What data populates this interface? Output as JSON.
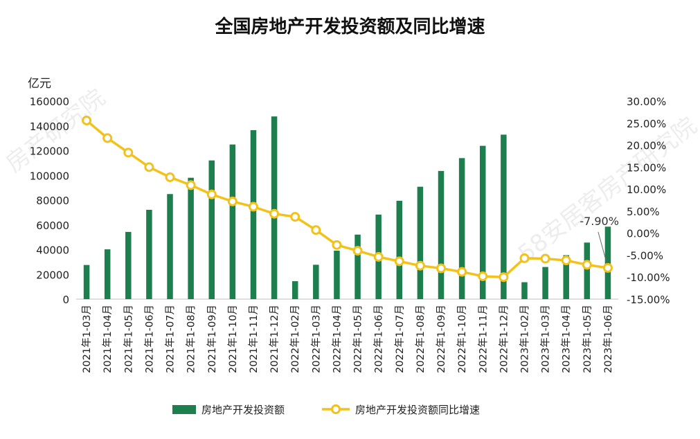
{
  "chart_data": {
    "type": "bar+line",
    "title": "全国房地产开发投资额及同比增速",
    "y_unit": "亿元",
    "categories": [
      "2021年1-03月",
      "2021年1-04月",
      "2021年1-05月",
      "2021年1-06月",
      "2021年1-07月",
      "2021年1-08月",
      "2021年1-09月",
      "2021年1-10月",
      "2021年1-11月",
      "2021年1-12月",
      "2022年1-02月",
      "2022年1-03月",
      "2022年1-04月",
      "2022年1-05月",
      "2022年1-06月",
      "2022年1-07月",
      "2022年1-08月",
      "2022年1-09月",
      "2022年1-10月",
      "2022年1-11月",
      "2022年1-12月",
      "2023年1-02月",
      "2023年1-03月",
      "2023年1-04月",
      "2023年1-05月",
      "2023年1-06月"
    ],
    "series": [
      {
        "name": "房地产开发投资额",
        "type": "bar",
        "axis": "left",
        "color": "#1e7f4e",
        "values": [
          27576,
          40240,
          54318,
          72179,
          84895,
          98060,
          112060,
          124934,
          136538,
          147602,
          14499,
          27765,
          39154,
          52134,
          68314,
          79462,
          90809,
          103559,
          113945,
          123863,
          132895,
          13669,
          25974,
          35514,
          45701,
          58550
        ]
      },
      {
        "name": "房地产开发投资额同比增速",
        "type": "line",
        "axis": "right",
        "color": "#f2c21b",
        "values": [
          25.6,
          21.6,
          18.3,
          15.0,
          12.7,
          10.9,
          8.8,
          7.2,
          6.0,
          4.4,
          3.7,
          0.7,
          -2.7,
          -4.0,
          -5.4,
          -6.4,
          -7.4,
          -8.0,
          -8.8,
          -9.8,
          -10.0,
          -5.7,
          -5.8,
          -6.2,
          -7.2,
          -7.9
        ]
      }
    ],
    "y_left": {
      "min": 0,
      "max": 160000,
      "step": 20000,
      "ticks": [
        "0",
        "20000",
        "40000",
        "60000",
        "80000",
        "100000",
        "120000",
        "140000",
        "160000"
      ]
    },
    "y_right": {
      "min": -15,
      "max": 30,
      "step": 5,
      "ticks": [
        "-15.00%",
        "-10.00%",
        "-5.00%",
        "0.00%",
        "5.00%",
        "10.00%",
        "15.00%",
        "20.00%",
        "25.00%",
        "30.00%"
      ]
    },
    "annotations": [
      {
        "text": "-7.90%",
        "category": "2023年1-06月"
      }
    ],
    "legend": {
      "position": "bottom",
      "items": [
        "房地产开发投资额",
        "房地产开发投资额同比增速"
      ]
    },
    "watermark": [
      "房产研究院",
      "58安居客房产研究院"
    ]
  }
}
